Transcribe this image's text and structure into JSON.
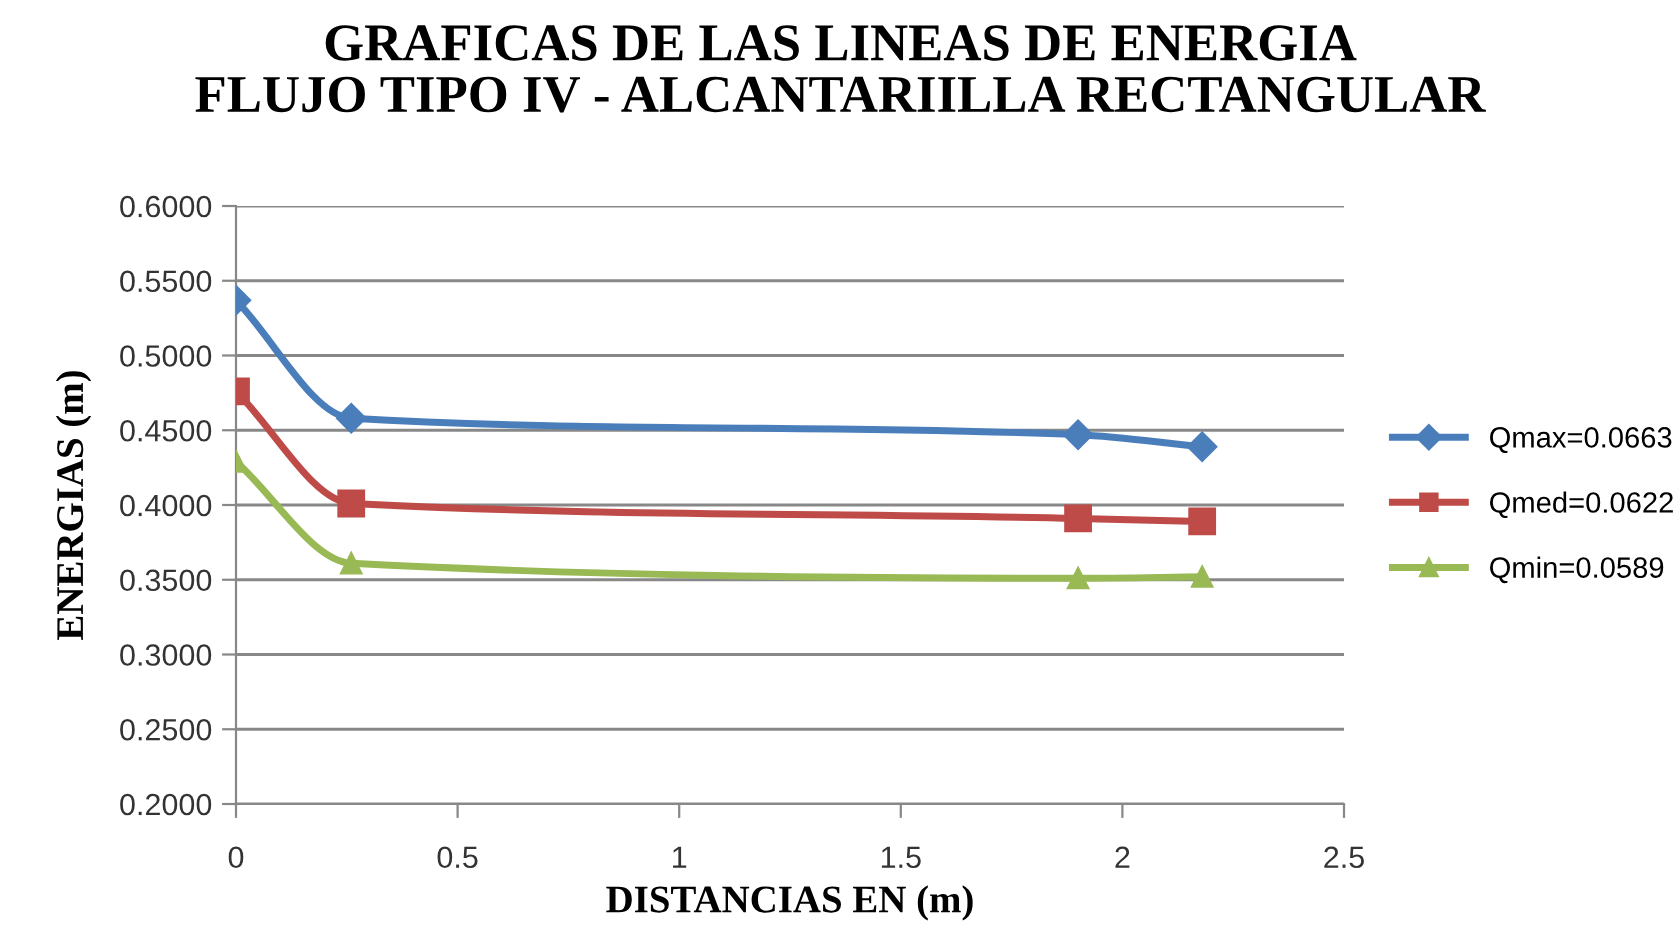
{
  "chart_data": {
    "type": "line",
    "title": "GRAFICAS DE LAS LINEAS DE ENERGIA\nFLUJO TIPO IV - ALCANTARIILLA RECTANGULAR",
    "xlabel": "DISTANCIAS EN (m)",
    "ylabel": "ENERGIAS (m)",
    "x": [
      0,
      0.26,
      1.9,
      2.18
    ],
    "series": [
      {
        "name": "Qmax=0.0663",
        "color": "#4a7ebb",
        "marker": "diamond",
        "values": [
          0.537,
          0.458,
          0.447,
          0.439
        ]
      },
      {
        "name": "Qmed=0.0622",
        "color": "#be4b48",
        "marker": "square",
        "values": [
          0.476,
          0.401,
          0.391,
          0.389
        ]
      },
      {
        "name": "Qmin=0.0589",
        "color": "#98b954",
        "marker": "triangle",
        "values": [
          0.429,
          0.361,
          0.351,
          0.352
        ]
      }
    ],
    "xlim": [
      0,
      2.5
    ],
    "xticks": [
      0,
      0.5,
      1,
      1.5,
      2,
      2.5
    ],
    "ylim": [
      0.2,
      0.6
    ],
    "yticks": [
      {
        "value": 0.2,
        "label": "0.2000"
      },
      {
        "value": 0.25,
        "label": "0.2500"
      },
      {
        "value": 0.3,
        "label": "0.3000"
      },
      {
        "value": 0.35,
        "label": "0.3500"
      },
      {
        "value": 0.4,
        "label": "0.4000"
      },
      {
        "value": 0.45,
        "label": "0.4500"
      },
      {
        "value": 0.5,
        "label": "0.5000"
      },
      {
        "value": 0.55,
        "label": "0.5500"
      },
      {
        "value": 0.6,
        "label": "0.6000"
      }
    ],
    "grid": "y",
    "legend": "right",
    "line_style": "solid"
  }
}
